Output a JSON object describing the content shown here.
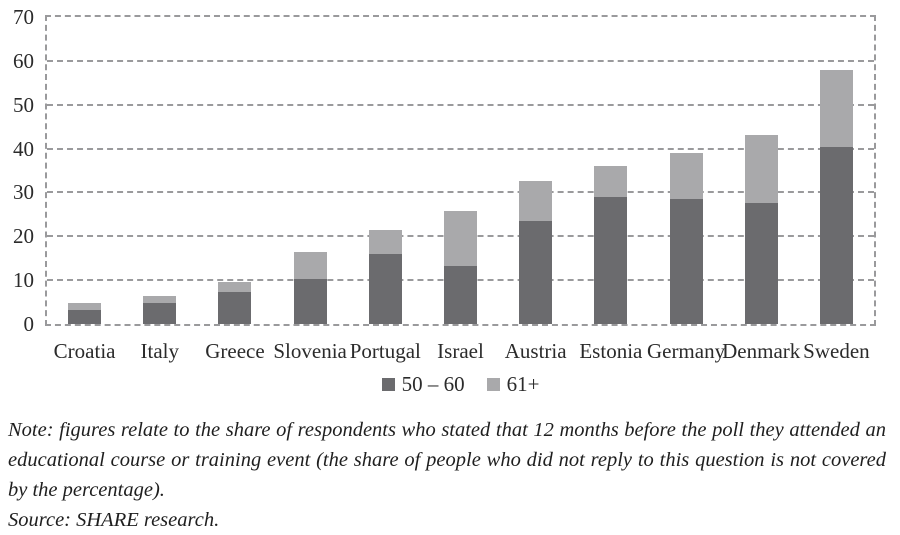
{
  "chart_data": {
    "type": "bar",
    "stacked": true,
    "categories": [
      "Croatia",
      "Italy",
      "Greece",
      "Slovenia",
      "Portugal",
      "Israel",
      "Austria",
      "Estonia",
      "Germany",
      "Denmark",
      "Sweden"
    ],
    "series": [
      {
        "name": "50 – 60",
        "color": "#6b6b6e",
        "values": [
          3.3,
          4.7,
          7.4,
          10.3,
          16.0,
          13.2,
          23.5,
          29.0,
          28.5,
          27.6,
          40.3
        ]
      },
      {
        "name": "61+",
        "color": "#a9a9ab",
        "values": [
          1.5,
          1.6,
          2.1,
          6.1,
          5.5,
          12.5,
          9.1,
          7.1,
          10.4,
          15.4,
          17.7
        ]
      }
    ],
    "totals": [
      4.8,
      6.3,
      9.5,
      16.4,
      21.5,
      25.7,
      32.6,
      36.1,
      38.9,
      43.0,
      58.0
    ],
    "title": "",
    "xlabel": "",
    "ylabel": "",
    "ylim": [
      0,
      70
    ],
    "ytick_step": 10,
    "yticks": [
      "0",
      "10",
      "20",
      "30",
      "40",
      "50",
      "60",
      "70"
    ],
    "grid": "horizontal-dashed",
    "grid_color": "#9a9a9c",
    "legend_position": "bottom"
  },
  "notes": {
    "note": "Note: figures relate to the share of respondents who stated that 12 months before the poll they attended an educational course or training event (the share of people who did not reply to this question is not covered by the percentage).",
    "source": "Source: SHARE research."
  }
}
